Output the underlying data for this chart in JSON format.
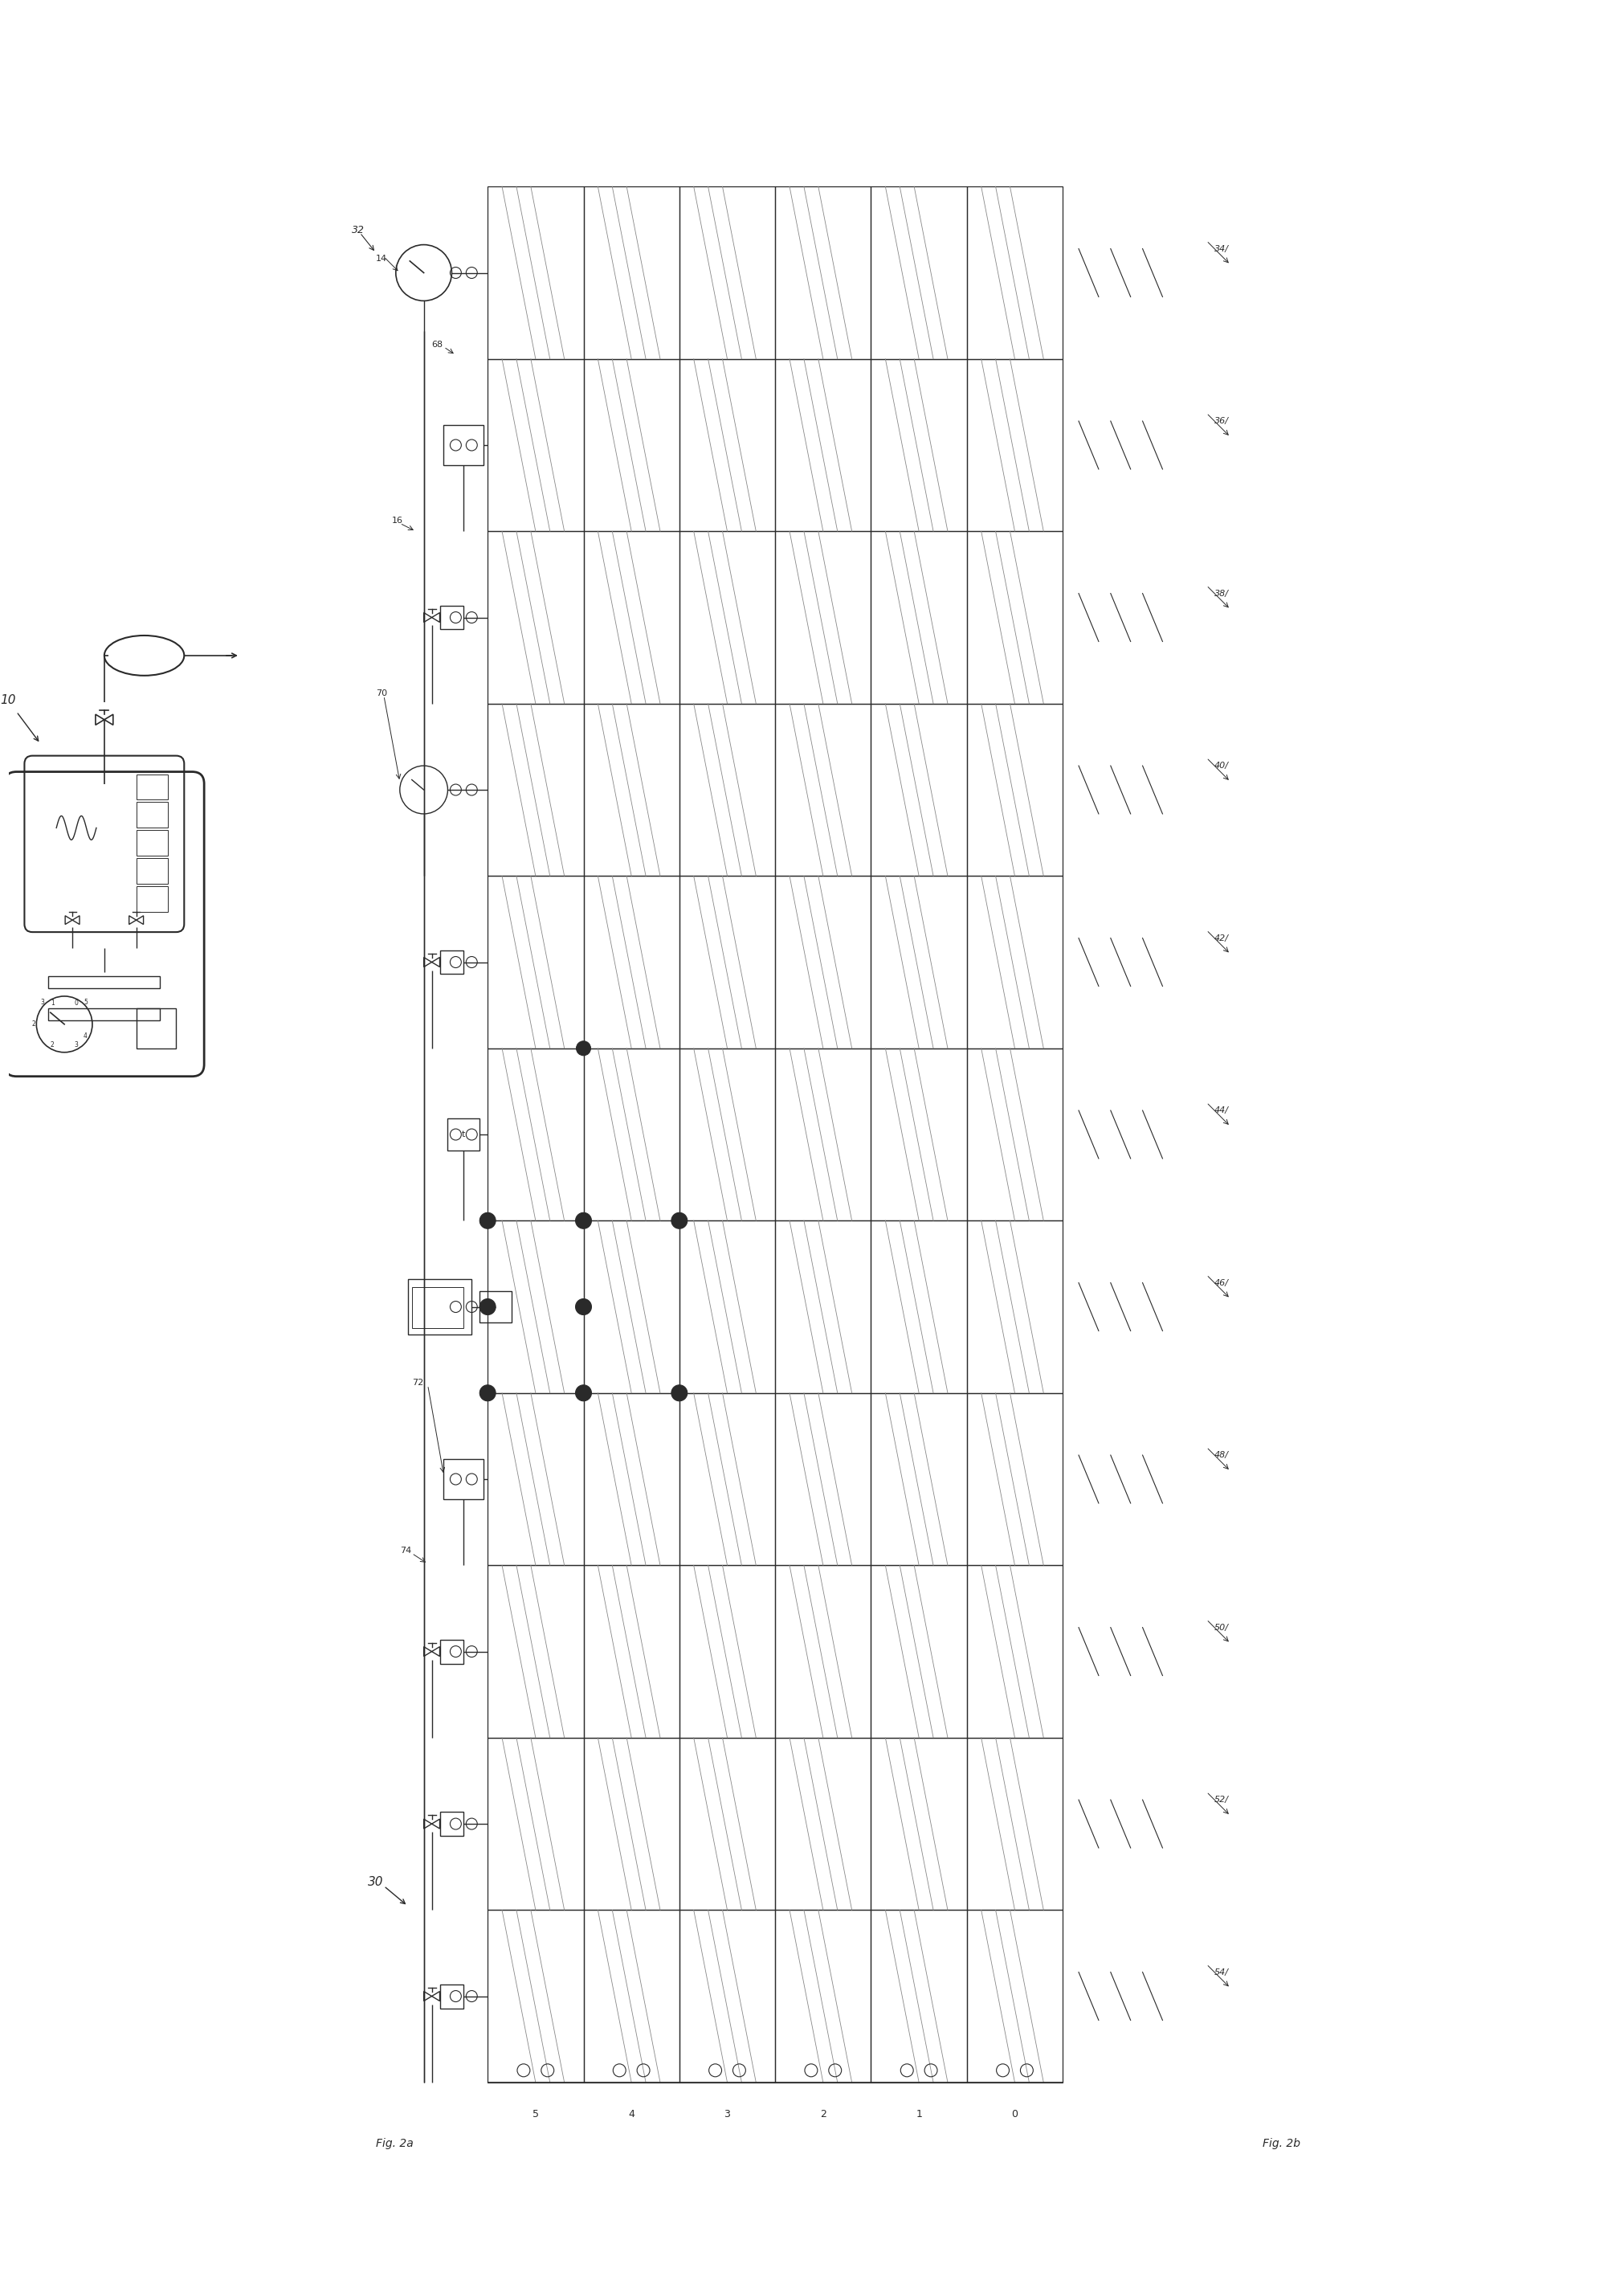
{
  "bg_color": "#ffffff",
  "line_color": "#2a2a2a",
  "fig_width": 20.22,
  "fig_height": 28.49,
  "labels": {
    "fig2a": "Fig. 2a",
    "fig2b": "Fig. 2b",
    "ref10": "10",
    "ref30": "30",
    "ref32": "32",
    "ref14": "14",
    "ref16": "16",
    "ref34": "34",
    "ref36": "36",
    "ref38": "38",
    "ref40": "40",
    "ref42": "42",
    "ref44": "44",
    "ref46": "46",
    "ref48": "48",
    "ref50": "50",
    "ref52": "52",
    "ref54": "54",
    "ref68": "68",
    "ref70": "70",
    "ref72": "72",
    "ref74": "74"
  },
  "grid": {
    "n_rows": 11,
    "n_cols": 6,
    "row_labels": [
      "34",
      "36",
      "38",
      "40",
      "42",
      "44",
      "46",
      "48",
      "50",
      "52",
      "54"
    ],
    "col_labels": [
      "5",
      "4",
      "3",
      "2",
      "1",
      "0"
    ]
  }
}
